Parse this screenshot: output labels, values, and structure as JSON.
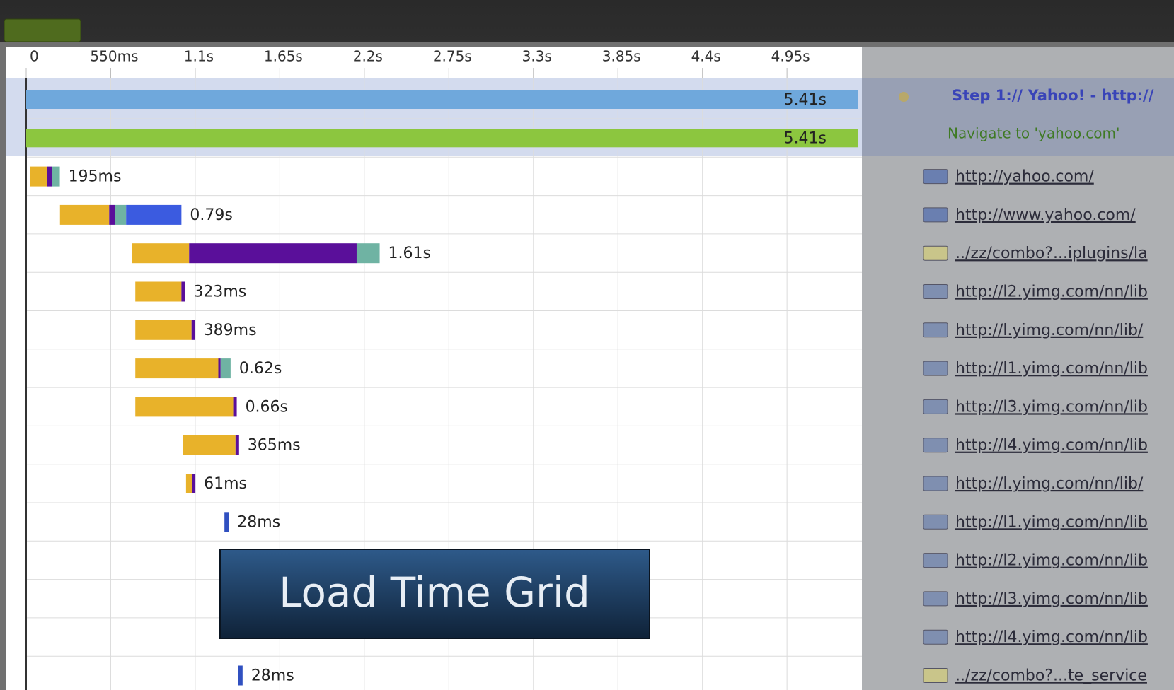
{
  "axis": {
    "ticks": [
      0,
      {
        "value": 0.55,
        "label": "550ms"
      },
      {
        "value": 1.1,
        "label": "1.1s"
      },
      {
        "value": 1.65,
        "label": "1.65s"
      },
      {
        "value": 2.2,
        "label": "2.2s"
      },
      {
        "value": 2.75,
        "label": "2.75s"
      },
      {
        "value": 3.3,
        "label": "3.3s"
      },
      {
        "value": 3.85,
        "label": "3.85s"
      },
      {
        "value": 4.4,
        "label": "4.4s"
      },
      {
        "value": 4.95,
        "label": "4.95s"
      }
    ]
  },
  "rows": [
    {
      "start": 0,
      "total": 5.41,
      "label": "5.41s",
      "segments": [
        {
          "color": "#6fa8dc",
          "value": 5.41
        }
      ]
    },
    {
      "start": 0,
      "total": 5.41,
      "label": "5.41s",
      "segments": [
        {
          "color": "#8cc63f",
          "value": 5.41
        }
      ]
    },
    {
      "start": 0.024,
      "total": 0.195,
      "label": "195ms",
      "segments": [
        {
          "color": "#e8b22a",
          "value": 0.11
        },
        {
          "color": "#5a0f9a",
          "value": 0.035
        },
        {
          "color": "#6fb3a3",
          "value": 0.05
        }
      ]
    },
    {
      "start": 0.22,
      "total": 0.79,
      "label": "0.79s",
      "segments": [
        {
          "color": "#e8b22a",
          "value": 0.32
        },
        {
          "color": "#5a0f9a",
          "value": 0.04
        },
        {
          "color": "#6fb3a3",
          "value": 0.07
        },
        {
          "color": "#3b5be0",
          "value": 0.36
        }
      ]
    },
    {
      "start": 0.69,
      "total": 1.61,
      "label": "1.61s",
      "segments": [
        {
          "color": "#e8b22a",
          "value": 0.37
        },
        {
          "color": "#5a0f9a",
          "value": 1.09
        },
        {
          "color": "#6fb3a3",
          "value": 0.15
        }
      ]
    },
    {
      "start": 0.71,
      "total": 0.323,
      "label": "323ms",
      "segments": [
        {
          "color": "#e8b22a",
          "value": 0.3
        },
        {
          "color": "#5a0f9a",
          "value": 0.023
        }
      ]
    },
    {
      "start": 0.71,
      "total": 0.389,
      "label": "389ms",
      "segments": [
        {
          "color": "#e8b22a",
          "value": 0.366
        },
        {
          "color": "#5a0f9a",
          "value": 0.023
        }
      ]
    },
    {
      "start": 0.71,
      "total": 0.62,
      "label": "0.62s",
      "segments": [
        {
          "color": "#e8b22a",
          "value": 0.54
        },
        {
          "color": "#5a0f9a",
          "value": 0.015
        },
        {
          "color": "#6fb3a3",
          "value": 0.065
        }
      ]
    },
    {
      "start": 0.71,
      "total": 0.66,
      "label": "0.66s",
      "segments": [
        {
          "color": "#e8b22a",
          "value": 0.637
        },
        {
          "color": "#5a0f9a",
          "value": 0.023
        }
      ]
    },
    {
      "start": 1.02,
      "total": 0.365,
      "label": "365ms",
      "segments": [
        {
          "color": "#e8b22a",
          "value": 0.342
        },
        {
          "color": "#5a0f9a",
          "value": 0.023
        }
      ]
    },
    {
      "start": 1.04,
      "total": 0.061,
      "label": "61ms",
      "segments": [
        {
          "color": "#e8b22a",
          "value": 0.038
        },
        {
          "color": "#5a0f9a",
          "value": 0.023
        }
      ]
    },
    {
      "start": 1.29,
      "total": 0.028,
      "label": "28ms",
      "segments": [
        {
          "color": "#3050c0",
          "value": 0.028
        }
      ]
    },
    {
      "start": 1.38,
      "total": 0.028,
      "label": "28ms",
      "segments": [
        {
          "color": "#3050c0",
          "value": 0.028
        }
      ]
    }
  ],
  "overlay": {
    "title": "Load Time Grid"
  },
  "side_panel": {
    "step": "Step 1:// Yahoo! - http://",
    "action": "Navigate to 'yahoo.com'",
    "links": [
      "http://yahoo.com/",
      "http://www.yahoo.com/",
      "../zz/combo?...iplugins/la",
      "http://l2.yimg.com/nn/lib",
      "http://l.yimg.com/nn/lib/",
      "http://l1.yimg.com/nn/lib",
      "http://l3.yimg.com/nn/lib",
      "http://l4.yimg.com/nn/lib",
      "http://l.yimg.com/nn/lib/",
      "http://l1.yimg.com/nn/lib",
      "http://l2.yimg.com/nn/lib",
      "http://l3.yimg.com/nn/lib",
      "http://l4.yimg.com/nn/lib",
      "../zz/combo?...te_service"
    ]
  }
}
